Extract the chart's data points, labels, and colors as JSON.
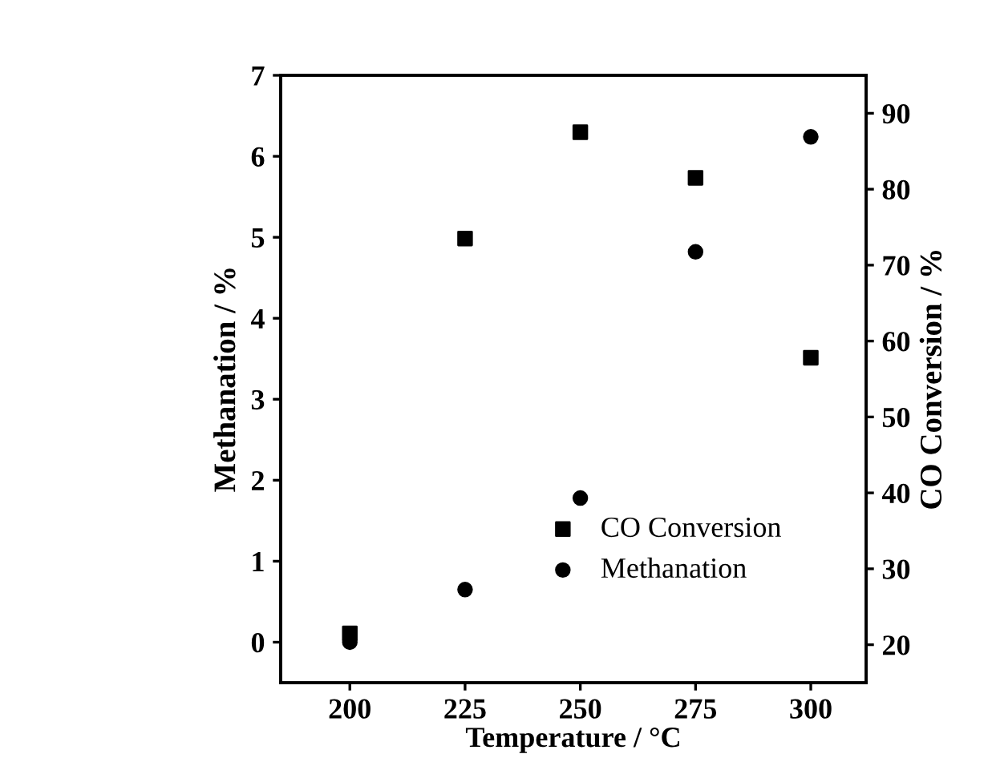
{
  "chart_data": {
    "type": "scatter",
    "xlabel": "Temperature / °C",
    "ylabel": "Methanation / %",
    "y2label": "CO Conversion / %",
    "x": [
      200,
      225,
      250,
      275,
      300
    ],
    "series": [
      {
        "name": "CO Conversion",
        "color": "#000000",
        "marker": "square",
        "axis": "y2",
        "values": [
          21.5,
          73.5,
          87.5,
          81.5,
          57.8
        ]
      },
      {
        "name": "Methanation",
        "color": "#000000",
        "marker": "circle",
        "values": [
          0,
          0.65,
          1.78,
          4.82,
          6.24
        ]
      }
    ],
    "xlim": [
      185,
      312
    ],
    "xticks": [
      200,
      225,
      250,
      275,
      300
    ],
    "ylim": [
      -0.5,
      7
    ],
    "yticks": [
      0,
      1,
      2,
      3,
      4,
      5,
      6,
      7
    ],
    "y2lim": [
      15,
      95
    ],
    "y2ticks": [
      20,
      30,
      40,
      50,
      60,
      70,
      80,
      90
    ],
    "legend": "bottom right",
    "grid": false
  }
}
